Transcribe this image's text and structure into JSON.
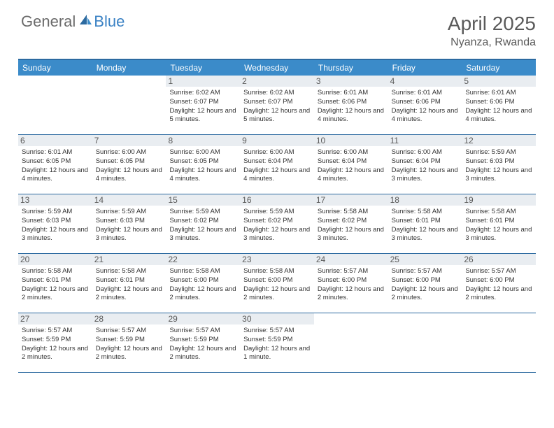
{
  "logo": {
    "part1": "General",
    "part2": "Blue"
  },
  "title": "April 2025",
  "location": "Nyanza, Rwanda",
  "colors": {
    "header_bar": "#3b8bc9",
    "border": "#2c6aa0",
    "daynum_bg": "#e9edf1",
    "text_muted": "#5a5a5a",
    "logo_blue": "#3b82c4",
    "logo_gray": "#6b6b6b"
  },
  "dow": [
    "Sunday",
    "Monday",
    "Tuesday",
    "Wednesday",
    "Thursday",
    "Friday",
    "Saturday"
  ],
  "weeks": [
    [
      null,
      null,
      {
        "n": "1",
        "sr": "6:02 AM",
        "ss": "6:07 PM",
        "dl": "12 hours and 5 minutes."
      },
      {
        "n": "2",
        "sr": "6:02 AM",
        "ss": "6:07 PM",
        "dl": "12 hours and 5 minutes."
      },
      {
        "n": "3",
        "sr": "6:01 AM",
        "ss": "6:06 PM",
        "dl": "12 hours and 4 minutes."
      },
      {
        "n": "4",
        "sr": "6:01 AM",
        "ss": "6:06 PM",
        "dl": "12 hours and 4 minutes."
      },
      {
        "n": "5",
        "sr": "6:01 AM",
        "ss": "6:06 PM",
        "dl": "12 hours and 4 minutes."
      }
    ],
    [
      {
        "n": "6",
        "sr": "6:01 AM",
        "ss": "6:05 PM",
        "dl": "12 hours and 4 minutes."
      },
      {
        "n": "7",
        "sr": "6:00 AM",
        "ss": "6:05 PM",
        "dl": "12 hours and 4 minutes."
      },
      {
        "n": "8",
        "sr": "6:00 AM",
        "ss": "6:05 PM",
        "dl": "12 hours and 4 minutes."
      },
      {
        "n": "9",
        "sr": "6:00 AM",
        "ss": "6:04 PM",
        "dl": "12 hours and 4 minutes."
      },
      {
        "n": "10",
        "sr": "6:00 AM",
        "ss": "6:04 PM",
        "dl": "12 hours and 4 minutes."
      },
      {
        "n": "11",
        "sr": "6:00 AM",
        "ss": "6:04 PM",
        "dl": "12 hours and 3 minutes."
      },
      {
        "n": "12",
        "sr": "5:59 AM",
        "ss": "6:03 PM",
        "dl": "12 hours and 3 minutes."
      }
    ],
    [
      {
        "n": "13",
        "sr": "5:59 AM",
        "ss": "6:03 PM",
        "dl": "12 hours and 3 minutes."
      },
      {
        "n": "14",
        "sr": "5:59 AM",
        "ss": "6:03 PM",
        "dl": "12 hours and 3 minutes."
      },
      {
        "n": "15",
        "sr": "5:59 AM",
        "ss": "6:02 PM",
        "dl": "12 hours and 3 minutes."
      },
      {
        "n": "16",
        "sr": "5:59 AM",
        "ss": "6:02 PM",
        "dl": "12 hours and 3 minutes."
      },
      {
        "n": "17",
        "sr": "5:58 AM",
        "ss": "6:02 PM",
        "dl": "12 hours and 3 minutes."
      },
      {
        "n": "18",
        "sr": "5:58 AM",
        "ss": "6:01 PM",
        "dl": "12 hours and 3 minutes."
      },
      {
        "n": "19",
        "sr": "5:58 AM",
        "ss": "6:01 PM",
        "dl": "12 hours and 3 minutes."
      }
    ],
    [
      {
        "n": "20",
        "sr": "5:58 AM",
        "ss": "6:01 PM",
        "dl": "12 hours and 2 minutes."
      },
      {
        "n": "21",
        "sr": "5:58 AM",
        "ss": "6:01 PM",
        "dl": "12 hours and 2 minutes."
      },
      {
        "n": "22",
        "sr": "5:58 AM",
        "ss": "6:00 PM",
        "dl": "12 hours and 2 minutes."
      },
      {
        "n": "23",
        "sr": "5:58 AM",
        "ss": "6:00 PM",
        "dl": "12 hours and 2 minutes."
      },
      {
        "n": "24",
        "sr": "5:57 AM",
        "ss": "6:00 PM",
        "dl": "12 hours and 2 minutes."
      },
      {
        "n": "25",
        "sr": "5:57 AM",
        "ss": "6:00 PM",
        "dl": "12 hours and 2 minutes."
      },
      {
        "n": "26",
        "sr": "5:57 AM",
        "ss": "6:00 PM",
        "dl": "12 hours and 2 minutes."
      }
    ],
    [
      {
        "n": "27",
        "sr": "5:57 AM",
        "ss": "5:59 PM",
        "dl": "12 hours and 2 minutes."
      },
      {
        "n": "28",
        "sr": "5:57 AM",
        "ss": "5:59 PM",
        "dl": "12 hours and 2 minutes."
      },
      {
        "n": "29",
        "sr": "5:57 AM",
        "ss": "5:59 PM",
        "dl": "12 hours and 2 minutes."
      },
      {
        "n": "30",
        "sr": "5:57 AM",
        "ss": "5:59 PM",
        "dl": "12 hours and 1 minute."
      },
      null,
      null,
      null
    ]
  ],
  "labels": {
    "sunrise": "Sunrise:",
    "sunset": "Sunset:",
    "daylight": "Daylight:"
  }
}
